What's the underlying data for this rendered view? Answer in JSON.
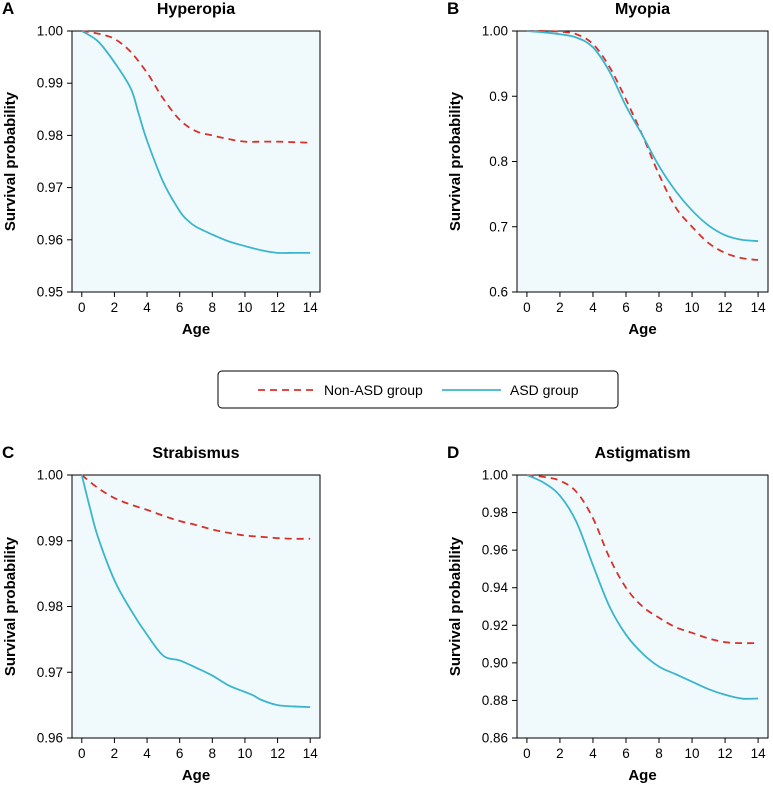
{
  "colors": {
    "non_asd": "#d9302a",
    "asd": "#3bb5cc",
    "plot_bg": "#f0f9fc",
    "axis": "#000000"
  },
  "legend": {
    "non_asd_label": "Non-ASD group",
    "asd_label": "ASD group"
  },
  "chart_data": [
    {
      "panel": "A",
      "type": "line",
      "title": "Hyperopia",
      "xlabel": "Age",
      "ylabel": "Survival probability",
      "xlim": [
        -0.6,
        14.6
      ],
      "ylim": [
        0.95,
        1.0
      ],
      "xticks": [
        0,
        2,
        4,
        6,
        8,
        10,
        12,
        14
      ],
      "yticks": [
        0.95,
        0.96,
        0.97,
        0.98,
        0.99,
        1.0
      ],
      "ytick_labels": [
        "0.95",
        "0.96",
        "0.97",
        "0.98",
        "0.99",
        "1.00"
      ],
      "series": [
        {
          "name": "Non-ASD group",
          "style": "dashed",
          "x": [
            0,
            1,
            2,
            3,
            4,
            4.5,
            5,
            6,
            7,
            8,
            9,
            10,
            11,
            12,
            13,
            14
          ],
          "y": [
            1.0,
            0.9995,
            0.9985,
            0.996,
            0.992,
            0.9895,
            0.987,
            0.983,
            0.9808,
            0.98,
            0.9793,
            0.9788,
            0.9788,
            0.9788,
            0.9787,
            0.9786
          ]
        },
        {
          "name": "ASD group",
          "style": "solid",
          "x": [
            0,
            1,
            2,
            3,
            3.5,
            4,
            5,
            6,
            6.5,
            7,
            8,
            9,
            10,
            11,
            12,
            13,
            14
          ],
          "y": [
            1.0,
            0.998,
            0.994,
            0.989,
            0.984,
            0.979,
            0.971,
            0.9655,
            0.9637,
            0.9625,
            0.961,
            0.9597,
            0.9588,
            0.958,
            0.9575,
            0.9575,
            0.9575
          ]
        }
      ]
    },
    {
      "panel": "B",
      "type": "line",
      "title": "Myopia",
      "xlabel": "Age",
      "ylabel": "Survival probability",
      "xlim": [
        -0.6,
        14.6
      ],
      "ylim": [
        0.6,
        1.0
      ],
      "xticks": [
        0,
        2,
        4,
        6,
        8,
        10,
        12,
        14
      ],
      "yticks": [
        0.6,
        0.7,
        0.8,
        0.9,
        1.0
      ],
      "ytick_labels": [
        "0.6",
        "0.7",
        "0.8",
        "0.9",
        "1.00"
      ],
      "series": [
        {
          "name": "Non-ASD group",
          "style": "dashed",
          "x": [
            0,
            1,
            2,
            3,
            4,
            5,
            6,
            7,
            8,
            9,
            10,
            11,
            12,
            13,
            14
          ],
          "y": [
            1.0,
            1.0,
            0.999,
            0.995,
            0.98,
            0.945,
            0.895,
            0.84,
            0.78,
            0.73,
            0.7,
            0.675,
            0.66,
            0.652,
            0.649
          ]
        },
        {
          "name": "ASD group",
          "style": "solid",
          "x": [
            0,
            1,
            2,
            3,
            4,
            5,
            6,
            7,
            8,
            9,
            10,
            11,
            12,
            13,
            14
          ],
          "y": [
            1.0,
            0.998,
            0.995,
            0.99,
            0.975,
            0.938,
            0.885,
            0.84,
            0.793,
            0.755,
            0.725,
            0.702,
            0.687,
            0.68,
            0.678
          ]
        }
      ]
    },
    {
      "panel": "C",
      "type": "line",
      "title": "Strabismus",
      "xlabel": "Age",
      "ylabel": "Survival probability",
      "xlim": [
        -0.6,
        14.6
      ],
      "ylim": [
        0.96,
        1.0
      ],
      "xticks": [
        0,
        2,
        4,
        6,
        8,
        10,
        12,
        14
      ],
      "yticks": [
        0.96,
        0.97,
        0.98,
        0.99,
        1.0
      ],
      "ytick_labels": [
        "0.96",
        "0.97",
        "0.98",
        "0.99",
        "1.00"
      ],
      "series": [
        {
          "name": "Non-ASD group",
          "style": "dashed",
          "x": [
            0,
            1,
            2,
            3,
            4,
            5,
            6,
            7,
            8,
            9,
            10,
            11,
            12,
            13,
            14
          ],
          "y": [
            1.0,
            0.998,
            0.9965,
            0.9955,
            0.9947,
            0.9938,
            0.993,
            0.9924,
            0.9917,
            0.9912,
            0.9908,
            0.9906,
            0.9904,
            0.9903,
            0.9903
          ]
        },
        {
          "name": "ASD group",
          "style": "solid",
          "x": [
            0,
            0.5,
            1,
            2,
            3,
            4,
            5,
            6,
            7,
            8,
            9,
            10,
            10.5,
            11,
            12,
            13,
            14
          ],
          "y": [
            1.0,
            0.995,
            0.9905,
            0.984,
            0.9795,
            0.9757,
            0.9725,
            0.9718,
            0.9707,
            0.9695,
            0.968,
            0.967,
            0.9665,
            0.9658,
            0.965,
            0.9648,
            0.9647
          ]
        }
      ]
    },
    {
      "panel": "D",
      "type": "line",
      "title": "Astigmatism",
      "xlabel": "Age",
      "ylabel": "Survival probability",
      "xlim": [
        -0.6,
        14.6
      ],
      "ylim": [
        0.86,
        1.0
      ],
      "xticks": [
        0,
        2,
        4,
        6,
        8,
        10,
        12,
        14
      ],
      "yticks": [
        0.86,
        0.88,
        0.9,
        0.92,
        0.94,
        0.96,
        0.98,
        1.0
      ],
      "ytick_labels": [
        "0.86",
        "0.88",
        "0.90",
        "0.92",
        "0.94",
        "0.96",
        "0.98",
        "1.00"
      ],
      "series": [
        {
          "name": "Non-ASD group",
          "style": "dashed",
          "x": [
            0,
            1,
            2,
            3,
            4,
            5,
            6,
            7,
            8,
            9,
            10,
            11,
            12,
            13,
            14
          ],
          "y": [
            1.0,
            0.999,
            0.997,
            0.991,
            0.977,
            0.956,
            0.94,
            0.93,
            0.924,
            0.919,
            0.916,
            0.913,
            0.911,
            0.9105,
            0.9105
          ]
        },
        {
          "name": "ASD group",
          "style": "solid",
          "x": [
            0,
            1,
            2,
            3,
            4,
            5,
            6,
            7,
            8,
            9,
            10,
            11,
            12,
            13,
            14
          ],
          "y": [
            1.0,
            0.996,
            0.989,
            0.975,
            0.952,
            0.93,
            0.915,
            0.905,
            0.898,
            0.894,
            0.89,
            0.886,
            0.883,
            0.881,
            0.881
          ]
        }
      ]
    }
  ]
}
